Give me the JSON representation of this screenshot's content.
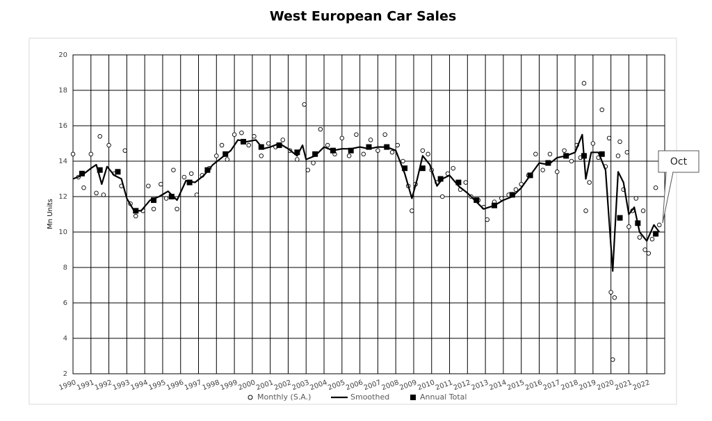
{
  "chart_data": {
    "type": "scatter",
    "title": "West European Car Sales",
    "ylabel": "Mn Units",
    "annotation": "Oct",
    "xlim": [
      1990,
      2023
    ],
    "xticks": [
      1990,
      1991,
      1992,
      1993,
      1994,
      1995,
      1996,
      1997,
      1998,
      1999,
      2000,
      2001,
      2002,
      2003,
      2004,
      2005,
      2006,
      2007,
      2008,
      2009,
      2010,
      2011,
      2012,
      2013,
      2014,
      2015,
      2016,
      2017,
      2018,
      2019,
      2020,
      2021,
      2022
    ],
    "ylim": [
      2,
      20
    ],
    "yticks": [
      2,
      4,
      6,
      8,
      10,
      12,
      14,
      16,
      18,
      20
    ],
    "grid": true,
    "series": [
      {
        "name": "Monthly (S.A.)",
        "marker": "circle",
        "color": "#000000",
        "x": [
          1990.0,
          1990.3,
          1990.6,
          1991.0,
          1991.3,
          1991.5,
          1991.7,
          1992.0,
          1992.3,
          1992.7,
          1992.9,
          1993.2,
          1993.5,
          1993.9,
          1994.2,
          1994.5,
          1994.9,
          1995.2,
          1995.6,
          1995.8,
          1996.2,
          1996.6,
          1996.9,
          1997.2,
          1997.6,
          1998.0,
          1998.3,
          1998.6,
          1999.0,
          1999.4,
          1999.8,
          2000.1,
          2000.5,
          2000.9,
          2001.3,
          2001.7,
          2002.1,
          2002.5,
          2002.9,
          2003.1,
          2003.4,
          2003.8,
          2004.2,
          2004.6,
          2005.0,
          2005.4,
          2005.8,
          2006.2,
          2006.6,
          2007.0,
          2007.4,
          2007.8,
          2008.1,
          2008.4,
          2008.7,
          2008.9,
          2009.1,
          2009.5,
          2009.8,
          2010.0,
          2010.3,
          2010.6,
          2010.9,
          2011.2,
          2011.6,
          2011.9,
          2012.2,
          2012.6,
          2012.9,
          2013.1,
          2013.5,
          2013.9,
          2014.3,
          2014.7,
          2015.0,
          2015.4,
          2015.8,
          2016.2,
          2016.6,
          2017.0,
          2017.4,
          2017.8,
          2018.1,
          2018.3,
          2018.5,
          2018.6,
          2018.8,
          2019.0,
          2019.3,
          2019.5,
          2019.7,
          2019.9,
          2020.0,
          2020.1,
          2020.2,
          2020.4,
          2020.5,
          2020.7,
          2020.9,
          2021.0,
          2021.2,
          2021.4,
          2021.6,
          2021.8,
          2021.9,
          2022.1,
          2022.3,
          2022.5,
          2022.7
        ],
        "values": [
          14.4,
          13.1,
          12.5,
          14.4,
          12.2,
          15.4,
          12.1,
          14.9,
          13.3,
          12.6,
          14.6,
          11.6,
          10.9,
          11.2,
          12.6,
          11.3,
          12.7,
          11.9,
          13.5,
          11.3,
          13.1,
          13.3,
          12.1,
          13.2,
          13.6,
          14.3,
          14.9,
          14.1,
          15.5,
          15.6,
          14.9,
          15.4,
          14.3,
          15.0,
          14.8,
          15.2,
          14.6,
          14.1,
          17.2,
          13.5,
          13.9,
          15.8,
          14.9,
          14.4,
          15.3,
          14.3,
          15.5,
          14.4,
          15.2,
          14.6,
          15.5,
          14.5,
          14.9,
          14.0,
          12.6,
          11.2,
          12.7,
          14.6,
          14.4,
          13.5,
          12.8,
          12.0,
          13.3,
          13.6,
          12.4,
          12.8,
          12.0,
          11.8,
          11.4,
          10.7,
          11.7,
          11.9,
          12.1,
          12.4,
          12.7,
          13.2,
          14.4,
          13.5,
          14.4,
          13.4,
          14.6,
          14.0,
          14.9,
          14.2,
          18.4,
          11.2,
          12.8,
          15.0,
          14.2,
          16.9,
          13.7,
          15.3,
          6.6,
          2.8,
          6.3,
          14.3,
          15.1,
          12.4,
          14.5,
          10.3,
          11.2,
          11.9,
          9.7,
          11.2,
          9.0,
          8.8,
          9.6,
          12.5,
          10.4
        ]
      },
      {
        "name": "Smoothed",
        "marker": "line",
        "color": "#000000",
        "x": [
          1990.0,
          1990.5,
          1991.0,
          1991.3,
          1991.6,
          1991.9,
          1992.3,
          1992.7,
          1993.0,
          1993.4,
          1993.8,
          1994.3,
          1994.8,
          1995.3,
          1995.8,
          1996.3,
          1996.8,
          1997.3,
          1997.8,
          1998.3,
          1998.8,
          1999.2,
          1999.7,
          2000.2,
          2000.6,
          2001.0,
          2001.5,
          2002.0,
          2002.5,
          2002.8,
          2003.0,
          2003.5,
          2004.0,
          2004.5,
          2005.0,
          2005.5,
          2006.0,
          2006.5,
          2007.0,
          2007.5,
          2008.0,
          2008.5,
          2008.9,
          2009.2,
          2009.5,
          2009.9,
          2010.3,
          2010.6,
          2011.0,
          2011.5,
          2012.0,
          2012.5,
          2012.9,
          2013.5,
          2014.0,
          2014.5,
          2015.0,
          2015.5,
          2016.0,
          2016.5,
          2017.0,
          2017.5,
          2018.0,
          2018.4,
          2018.6,
          2018.9,
          2019.3,
          2019.7,
          2020.1,
          2020.4,
          2020.7,
          2021.0,
          2021.3,
          2021.6,
          2022.0,
          2022.4,
          2022.7
        ],
        "values": [
          13.0,
          13.2,
          13.6,
          13.8,
          12.7,
          13.7,
          13.2,
          13.0,
          11.9,
          11.2,
          11.2,
          11.8,
          12.0,
          12.3,
          11.8,
          12.9,
          12.8,
          13.2,
          13.8,
          14.2,
          14.6,
          15.2,
          15.1,
          15.2,
          14.7,
          14.8,
          15.0,
          14.7,
          14.3,
          14.9,
          14.1,
          14.3,
          14.8,
          14.6,
          14.7,
          14.7,
          14.8,
          14.7,
          14.8,
          14.8,
          14.6,
          13.3,
          11.9,
          13.0,
          14.3,
          13.8,
          12.6,
          13.0,
          13.2,
          12.6,
          12.2,
          11.7,
          11.3,
          11.5,
          11.8,
          12.0,
          12.5,
          13.2,
          13.9,
          13.8,
          14.2,
          14.3,
          14.5,
          15.5,
          13.0,
          14.5,
          14.5,
          13.5,
          7.8,
          13.4,
          12.8,
          11.0,
          11.4,
          10.0,
          9.5,
          10.4,
          10.0
        ]
      },
      {
        "name": "Annual Total",
        "marker": "square",
        "color": "#000000",
        "x": [
          1990.5,
          1991.5,
          1992.5,
          1993.5,
          1994.5,
          1995.5,
          1996.5,
          1997.5,
          1998.5,
          1999.5,
          2000.5,
          2001.5,
          2002.5,
          2003.5,
          2004.5,
          2005.5,
          2006.5,
          2007.5,
          2008.5,
          2009.5,
          2010.5,
          2011.5,
          2012.5,
          2013.5,
          2014.5,
          2015.5,
          2016.5,
          2017.5,
          2018.5,
          2019.5,
          2020.5,
          2021.5,
          2022.5
        ],
        "values": [
          13.3,
          13.5,
          13.4,
          11.2,
          11.8,
          12.0,
          12.8,
          13.5,
          14.4,
          15.1,
          14.8,
          14.9,
          14.5,
          14.4,
          14.6,
          14.6,
          14.8,
          14.8,
          13.6,
          13.6,
          13.0,
          12.8,
          11.8,
          11.5,
          12.1,
          13.2,
          13.9,
          14.3,
          14.3,
          14.4,
          10.8,
          10.5,
          9.9
        ]
      }
    ]
  }
}
